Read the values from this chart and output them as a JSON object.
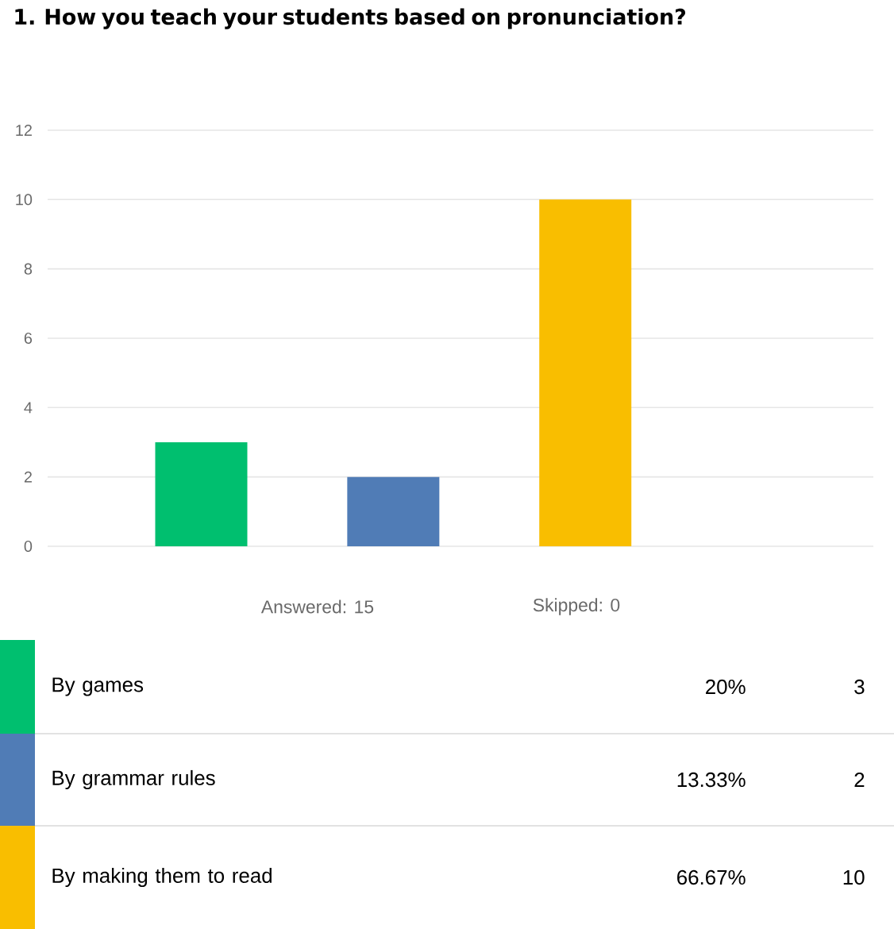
{
  "chart_data": [
    {
      "type": "bar",
      "title": "1. How you teach your students based on pronunciation?",
      "categories": [
        null,
        null,
        null
      ],
      "values": [
        3,
        2,
        10
      ],
      "colors": [
        "#00bf6f",
        "#507cb6",
        "#f9be00"
      ],
      "ylim": [
        0,
        12
      ],
      "yticks": [
        0,
        2,
        4,
        6,
        8,
        10,
        12
      ],
      "grid": "y",
      "tick_labels": "y",
      "annotations": [
        "Answered: 15",
        "Skipped: 0"
      ]
    },
    {
      "type": "other",
      "annotations": [
        "By games",
        "20%",
        "3",
        "By grammar rules",
        "13.33%",
        "2",
        "By making them to read",
        "66.67%",
        "10"
      ]
    }
  ]
}
